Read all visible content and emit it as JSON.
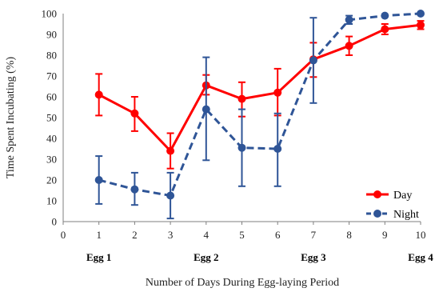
{
  "chart_data": {
    "type": "line",
    "xlabel": "Number of Days During Egg-laying Period",
    "ylabel": "Time Spent Incubating (%)",
    "xlim": [
      0,
      10
    ],
    "ylim": [
      0,
      100
    ],
    "x_ticks": [
      0,
      1,
      2,
      3,
      4,
      5,
      6,
      7,
      8,
      9,
      10
    ],
    "y_ticks": [
      0,
      10,
      20,
      30,
      40,
      50,
      60,
      70,
      80,
      90,
      100
    ],
    "legend_position": "bottom-right",
    "grid": false,
    "egg_markers": [
      {
        "x": 1,
        "label": "Egg 1"
      },
      {
        "x": 4,
        "label": "Egg 2"
      },
      {
        "x": 7,
        "label": "Egg 3"
      },
      {
        "x": 10,
        "label": "Egg 4"
      }
    ],
    "series": [
      {
        "name": "Day",
        "color": "#ff0000",
        "dash": "solid",
        "x": [
          1,
          2,
          3,
          4,
          5,
          6,
          7,
          8,
          9,
          10
        ],
        "values": [
          61,
          52,
          34,
          65.5,
          59,
          62,
          78,
          84.5,
          92.5,
          94.5
        ],
        "err_low": [
          51,
          43.5,
          25.5,
          61,
          50.5,
          51,
          69.5,
          80,
          90,
          92.5
        ],
        "err_high": [
          71,
          60,
          42.5,
          70.5,
          67,
          73.5,
          86,
          89,
          95,
          96.5
        ]
      },
      {
        "name": "Night",
        "color": "#2f5597",
        "dash": "dashed",
        "x": [
          1,
          2,
          3,
          4,
          5,
          6,
          7,
          8,
          9,
          10
        ],
        "values": [
          20,
          15.5,
          12.5,
          54,
          35.5,
          35,
          77.5,
          97,
          99,
          100
        ],
        "err_low": [
          8.5,
          8,
          1.5,
          29.5,
          17,
          17,
          57,
          95,
          99,
          100
        ],
        "err_high": [
          31.5,
          23.5,
          23.5,
          79,
          54,
          52,
          98,
          99,
          99,
          100
        ]
      }
    ]
  }
}
